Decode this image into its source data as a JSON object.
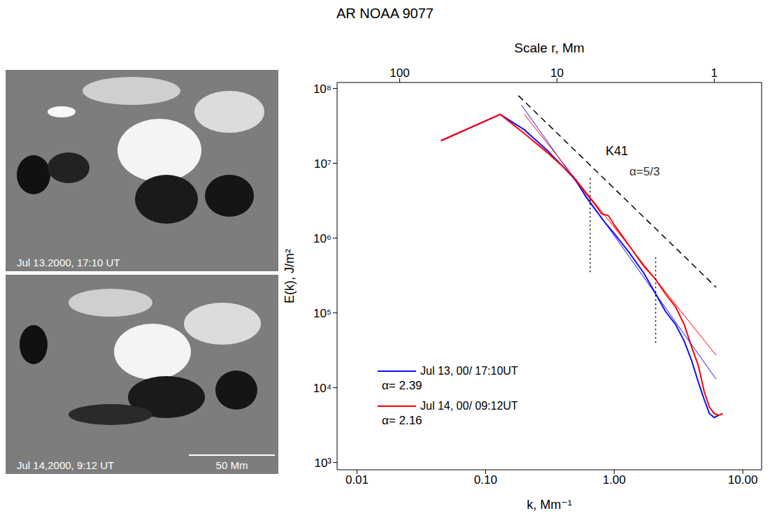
{
  "title": "AR NOAA 9077",
  "images": [
    {
      "label": "Jul 13.2000, 17:10 UT"
    },
    {
      "label": "Jul 14,2000, 9:12 UT",
      "scale_bar": "50 Mm"
    }
  ],
  "chart_data": {
    "type": "line",
    "log": true,
    "xlabel": "k, Mm⁻¹",
    "ylabel": "E(k), J/m²",
    "x2label": "Scale r, Mm",
    "xlim": [
      0.007,
      14
    ],
    "xticks": [
      {
        "value": 0.01,
        "label": "0.01"
      },
      {
        "value": 0.1,
        "label": "0.10"
      },
      {
        "value": 1,
        "label": "1.00"
      },
      {
        "value": 10,
        "label": "10.00"
      }
    ],
    "ylim": [
      800,
      120000000
    ],
    "yticks": [
      {
        "value": 1000,
        "label": "10³"
      },
      {
        "value": 10000,
        "label": "10⁴"
      },
      {
        "value": 100000,
        "label": "10⁵"
      },
      {
        "value": 1000000,
        "label": "10⁶"
      },
      {
        "value": 10000000,
        "label": "10⁷"
      },
      {
        "value": 100000000,
        "label": "10⁸"
      }
    ],
    "x2lim": [
      250,
      0.5
    ],
    "x2ticks": [
      100,
      10,
      1
    ],
    "legend": "lower left",
    "series": [
      {
        "name": "Jul 13, 00/ 17:10UT",
        "color": "#1010ff",
        "x": [
          0.045,
          0.13,
          0.2,
          0.3,
          0.4,
          0.5,
          0.6,
          0.7,
          0.85,
          1.0,
          1.3,
          1.7,
          2.1,
          2.5,
          3.0,
          3.5,
          4.0,
          4.5,
          5.0,
          5.5,
          6.0,
          6.5
        ],
        "values": [
          20000000,
          45000000,
          28000000,
          15000000,
          9000000,
          6000000,
          3600000,
          2500000,
          1600000,
          1150000,
          650000,
          340000,
          180000,
          105000,
          70000,
          42000,
          23000,
          12000,
          7000,
          4500,
          4000,
          4300
        ],
        "fit": {
          "label": "α= 2.39",
          "x": [
            0.19,
            6.2
          ],
          "values": [
            60000000,
            13000
          ]
        }
      },
      {
        "name": "Jul 14, 00/ 09:12UT",
        "color": "#ff0000",
        "x": [
          0.045,
          0.13,
          0.2,
          0.3,
          0.4,
          0.5,
          0.6,
          0.7,
          0.8,
          0.9,
          1.0,
          1.3,
          1.7,
          2.1,
          2.5,
          3.0,
          3.5,
          4.0,
          4.5,
          5.0,
          5.5,
          6.0,
          6.5,
          7.0
        ],
        "values": [
          20000000,
          45000000,
          25000000,
          14000000,
          9000000,
          6000000,
          4000000,
          2900000,
          2100000,
          2000000,
          1500000,
          800000,
          420000,
          280000,
          180000,
          120000,
          70000,
          35000,
          20000,
          9000,
          5500,
          4500,
          4300,
          4500
        ],
        "fit": {
          "label": "α= 2.16",
          "x": [
            0.2,
            6.2
          ],
          "values": [
            45000000,
            27000
          ]
        }
      },
      {
        "name": "K41",
        "label": "α=5/3",
        "color": "#000000",
        "line_style": "dashed",
        "x": [
          0.18,
          6.2
        ],
        "values": [
          80000000,
          220000
        ]
      }
    ],
    "vlines": [
      {
        "x": 0.65,
        "y": [
          350000,
          6500000
        ],
        "line_style": "dotted",
        "color": "#000000"
      },
      {
        "x": 2.1,
        "y": [
          40000,
          600000
        ],
        "line_style": "dotted",
        "color": "#000000"
      }
    ]
  }
}
